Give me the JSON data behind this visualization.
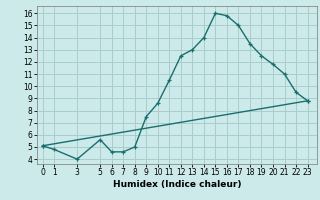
{
  "title": "",
  "xlabel": "Humidex (Indice chaleur)",
  "bg_color": "#cceaea",
  "line_color": "#1a6e6e",
  "grid_color": "#aacccc",
  "xticks": [
    0,
    1,
    3,
    5,
    6,
    7,
    8,
    9,
    10,
    11,
    12,
    13,
    14,
    15,
    16,
    17,
    18,
    19,
    20,
    21,
    22,
    23
  ],
  "yticks": [
    4,
    5,
    6,
    7,
    8,
    9,
    10,
    11,
    12,
    13,
    14,
    15,
    16
  ],
  "ylim": [
    3.6,
    16.6
  ],
  "xlim": [
    -0.5,
    23.8
  ],
  "curve1_x": [
    0,
    1,
    3,
    5,
    6,
    7,
    8,
    9,
    10,
    11,
    12,
    13,
    14,
    15,
    16,
    17,
    18,
    19,
    20,
    21,
    22,
    23
  ],
  "curve1_y": [
    5.1,
    4.8,
    4.0,
    5.6,
    4.6,
    4.6,
    5.0,
    7.5,
    8.6,
    10.5,
    12.5,
    13.0,
    14.0,
    16.0,
    15.8,
    15.0,
    13.5,
    12.5,
    11.8,
    11.0,
    9.5,
    8.8
  ],
  "curve2_x": [
    0,
    23
  ],
  "curve2_y": [
    5.1,
    8.8
  ],
  "markersize": 3,
  "linewidth": 1.0,
  "tick_fontsize": 5.5,
  "xlabel_fontsize": 6.5
}
